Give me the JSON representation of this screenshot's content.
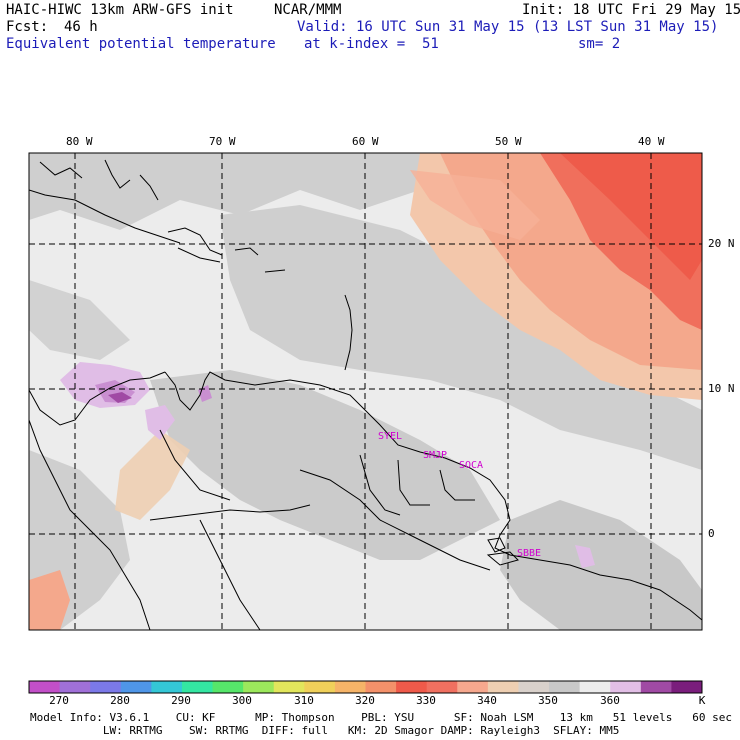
{
  "header": {
    "model": "HAIC-HIWC 13km ARW-GFS init",
    "org": "NCAR/MMM",
    "init": "Init: 18 UTC Fri 29 May 15",
    "fcst_label": "Fcst:",
    "fcst_value": "46 h",
    "valid": "Valid: 16 UTC Sun 31 May 15 (13 LST Sun 31 May 15)",
    "field": "Equivalent potential temperature",
    "level": "at k-index =  51",
    "smooth": "sm= 2"
  },
  "map": {
    "lon_labels": [
      "80 W",
      "70 W",
      "60 W",
      "50 W",
      "40 W"
    ],
    "lat_labels": [
      "20 N",
      "10 N",
      "0"
    ],
    "stations": [
      {
        "id": "SYEL",
        "label": "SYEL"
      },
      {
        "id": "SMJP",
        "label": "SMJP"
      },
      {
        "id": "SOCA",
        "label": "SOCA"
      },
      {
        "id": "SBBE",
        "label": "SBBE"
      }
    ]
  },
  "colorbar": {
    "labels": [
      "270",
      "280",
      "290",
      "300",
      "310",
      "320",
      "330",
      "340",
      "350",
      "360"
    ],
    "unit": "K",
    "colors": [
      "#c24fc8",
      "#a070d8",
      "#7b79e8",
      "#4f96e8",
      "#34c7d6",
      "#34e6a2",
      "#56e66a",
      "#9ce85c",
      "#e2e65c",
      "#f0d05a",
      "#f6b468",
      "#f4916a",
      "#ef5a4a",
      "#f07060",
      "#f6a88e",
      "#eecfb2",
      "#d9d1cb",
      "#c8c8c8",
      "#ececec",
      "#e2bfe6",
      "#a04aa4",
      "#7a1e7c"
    ]
  },
  "footer": {
    "line1": "Model Info: V3.6.1    CU: KF      MP: Thompson    PBL: YSU      SF: Noah LSM    13 km   51 levels   60 sec",
    "line2": "           LW: RRTMG    SW: RRTMG  DIFF: full   KM: 2D Smagor DAMP: Rayleigh3  SFLAY: MM5"
  }
}
